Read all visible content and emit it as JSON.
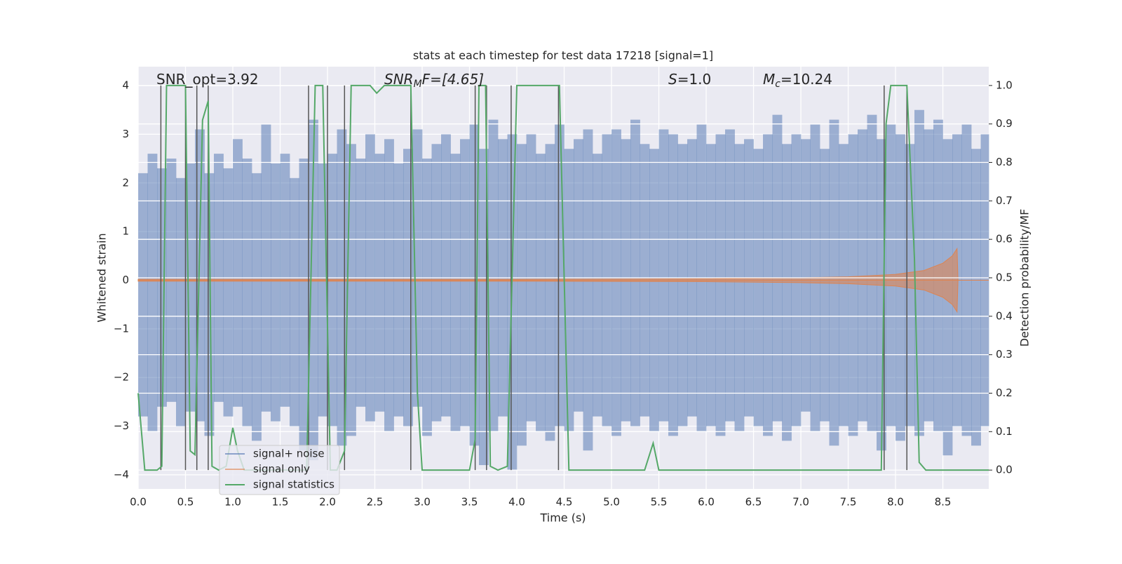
{
  "chart_data": {
    "type": "timeseries",
    "title": "stats at each timestep for test data 17218 [signal=1]",
    "xlabel": "Time (s)",
    "ylabel": "Whitened strain",
    "y2label": "Detection probability/MF",
    "xlim": [
      0,
      8.985
    ],
    "ylim": [
      -4.29,
      4.39
    ],
    "y2lim": [
      -0.049,
      1.049
    ],
    "xticks": [
      {
        "value": 0,
        "label": "0.0"
      },
      {
        "value": 0.5,
        "label": "0.5"
      },
      {
        "value": 1,
        "label": "1.0"
      },
      {
        "value": 1.5,
        "label": "1.5"
      },
      {
        "value": 2,
        "label": "2.0"
      },
      {
        "value": 2.5,
        "label": "2.5"
      },
      {
        "value": 3,
        "label": "3.0"
      },
      {
        "value": 3.5,
        "label": "3.5"
      },
      {
        "value": 4,
        "label": "4.0"
      },
      {
        "value": 4.5,
        "label": "4.5"
      },
      {
        "value": 5,
        "label": "5.0"
      },
      {
        "value": 5.5,
        "label": "5.5"
      },
      {
        "value": 6,
        "label": "6.0"
      },
      {
        "value": 6.5,
        "label": "6.5"
      },
      {
        "value": 7,
        "label": "7.0"
      },
      {
        "value": 7.5,
        "label": "7.5"
      },
      {
        "value": 8,
        "label": "8.0"
      },
      {
        "value": 8.5,
        "label": "8.5"
      }
    ],
    "yticks": [
      {
        "value": -4,
        "label": "−4"
      },
      {
        "value": -3,
        "label": "−3"
      },
      {
        "value": -2,
        "label": "−2"
      },
      {
        "value": -1,
        "label": "−1"
      },
      0,
      1,
      2,
      3,
      4
    ],
    "y2ticks": [
      {
        "value": 0,
        "label": "0.0"
      },
      0.1,
      0.2,
      0.3,
      0.4,
      0.5,
      0.6,
      0.7,
      0.8,
      0.9,
      {
        "value": 1,
        "label": "1.0"
      }
    ],
    "grid": true,
    "legend": "lower left",
    "annotations": [
      {
        "main": "SNR_opt=3.92"
      },
      {
        "main": "SNR",
        "sub": "M",
        "rest": "F=[4.65]"
      },
      {
        "main": "S",
        "rest": "=1.0"
      },
      {
        "main": "M",
        "sub": "c",
        "rest": "=10.24"
      }
    ],
    "noise": {
      "name": "signal+ noise",
      "color": "#4c72b0",
      "x": [
        0.0,
        0.1,
        0.2,
        0.3,
        0.4,
        0.5,
        0.6,
        0.7,
        0.8,
        0.9,
        1.0,
        1.1,
        1.2,
        1.3,
        1.4,
        1.5,
        1.6,
        1.7,
        1.8,
        1.9,
        2.0,
        2.1,
        2.2,
        2.3,
        2.4,
        2.5,
        2.6,
        2.7,
        2.8,
        2.9,
        3.0,
        3.1,
        3.2,
        3.3,
        3.4,
        3.5,
        3.6,
        3.7,
        3.8,
        3.9,
        4.0,
        4.1,
        4.2,
        4.3,
        4.4,
        4.5,
        4.6,
        4.7,
        4.8,
        4.9,
        5.0,
        5.1,
        5.2,
        5.3,
        5.4,
        5.5,
        5.6,
        5.7,
        5.8,
        5.9,
        6.0,
        6.1,
        6.2,
        6.3,
        6.4,
        6.5,
        6.6,
        6.7,
        6.8,
        6.9,
        7.0,
        7.1,
        7.2,
        7.3,
        7.4,
        7.5,
        7.6,
        7.7,
        7.8,
        7.9,
        8.0,
        8.1,
        8.2,
        8.3,
        8.4,
        8.5,
        8.6,
        8.7,
        8.8,
        8.9
      ],
      "max": [
        2.2,
        2.6,
        2.3,
        2.5,
        2.1,
        2.4,
        3.1,
        2.2,
        2.6,
        2.3,
        2.9,
        2.5,
        2.2,
        3.2,
        2.4,
        2.6,
        2.1,
        2.5,
        3.3,
        2.4,
        2.6,
        3.1,
        2.8,
        2.5,
        3.0,
        2.6,
        2.9,
        2.4,
        2.7,
        3.1,
        2.5,
        2.8,
        3.0,
        2.6,
        2.9,
        3.2,
        2.7,
        3.3,
        2.9,
        3.0,
        2.8,
        3.0,
        2.6,
        2.8,
        3.2,
        2.7,
        2.9,
        3.1,
        2.6,
        3.0,
        3.1,
        2.9,
        3.3,
        2.8,
        2.7,
        3.1,
        3.0,
        2.8,
        2.9,
        3.2,
        2.8,
        3.0,
        3.1,
        2.8,
        2.9,
        2.7,
        3.0,
        3.4,
        2.8,
        3.0,
        2.9,
        3.2,
        2.7,
        3.3,
        2.8,
        3.0,
        3.1,
        3.4,
        2.9,
        3.2,
        3.0,
        2.8,
        3.5,
        3.1,
        3.3,
        2.9,
        3.0,
        3.2,
        2.7,
        3.0
      ],
      "min": [
        -2.8,
        -3.1,
        -2.6,
        -2.5,
        -3.0,
        -2.7,
        -2.9,
        -3.2,
        -2.5,
        -2.8,
        -2.6,
        -3.0,
        -3.3,
        -2.7,
        -2.9,
        -2.6,
        -3.0,
        -3.5,
        -3.7,
        -2.8,
        -3.0,
        -3.4,
        -3.2,
        -2.6,
        -2.9,
        -2.7,
        -3.1,
        -2.8,
        -3.0,
        -2.6,
        -3.2,
        -2.9,
        -2.8,
        -3.1,
        -3.0,
        -3.4,
        -3.8,
        -3.1,
        -2.8,
        -3.9,
        -3.4,
        -2.9,
        -3.1,
        -3.3,
        -3.0,
        -3.1,
        -2.7,
        -3.5,
        -2.8,
        -3.0,
        -3.2,
        -2.9,
        -3.0,
        -2.8,
        -3.1,
        -2.9,
        -3.2,
        -3.0,
        -2.8,
        -3.1,
        -3.0,
        -3.2,
        -2.9,
        -3.1,
        -2.8,
        -3.0,
        -3.2,
        -2.9,
        -3.3,
        -3.0,
        -2.7,
        -3.1,
        -2.9,
        -3.4,
        -3.0,
        -3.2,
        -2.9,
        -3.1,
        -3.5,
        -3.0,
        -3.3,
        -3.0,
        -3.2,
        -2.9,
        -3.1,
        -3.6,
        -3.0,
        -3.2,
        -3.4,
        -3.0
      ]
    },
    "signal": {
      "name": "signal only",
      "color": "#dd8452",
      "x": [
        0.0,
        2.0,
        4.0,
        6.0,
        7.0,
        7.5,
        8.0,
        8.3,
        8.5,
        8.6,
        8.65,
        8.66,
        8.985
      ],
      "values": [
        0.02,
        0.02,
        0.02,
        0.03,
        0.05,
        0.07,
        0.12,
        0.2,
        0.35,
        0.5,
        0.65,
        0.0,
        0.0
      ]
    },
    "stats": {
      "name": "signal statistics",
      "color": "#55a868",
      "axis": "y2",
      "x": [
        0,
        0.07,
        0.2,
        0.25,
        0.3,
        0.5,
        0.55,
        0.6,
        0.68,
        0.74,
        0.78,
        0.85,
        0.93,
        1.0,
        1.05,
        1.12,
        1.78,
        1.87,
        1.95,
        2.03,
        2.1,
        2.18,
        2.25,
        2.45,
        2.52,
        2.6,
        2.88,
        2.95,
        3.0,
        3.5,
        3.56,
        3.6,
        3.67,
        3.72,
        3.8,
        3.9,
        4.0,
        4.45,
        4.55,
        5.35,
        5.44,
        5.5,
        7.85,
        7.9,
        7.95,
        8.12,
        8.2,
        8.25,
        8.32,
        8.985
      ],
      "values": [
        0.2,
        0.0,
        0.0,
        0.01,
        1.0,
        1.0,
        0.05,
        0.04,
        0.91,
        0.96,
        0.01,
        0.0,
        0.01,
        0.11,
        0.05,
        0.0,
        0.0,
        1.0,
        1.0,
        0.0,
        0.0,
        0.05,
        1.0,
        1.0,
        0.98,
        1.0,
        1.0,
        0.2,
        0.0,
        0.0,
        0.08,
        1.0,
        1.0,
        0.01,
        0.0,
        0.01,
        1.0,
        1.0,
        0.0,
        0.0,
        0.07,
        0.0,
        0.0,
        0.9,
        1.0,
        1.0,
        0.55,
        0.02,
        0.0,
        0.0
      ]
    },
    "vlines": {
      "color": "#555555",
      "x": [
        0.24,
        0.5,
        0.62,
        0.74,
        1.8,
        2.0,
        2.18,
        2.88,
        3.56,
        3.68,
        3.94,
        4.44,
        7.88,
        8.12
      ],
      "y2": [
        0,
        1
      ]
    }
  }
}
